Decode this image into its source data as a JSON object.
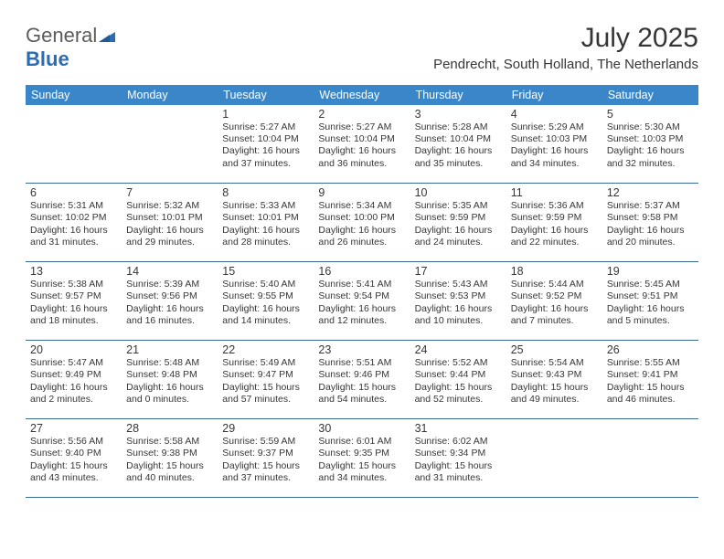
{
  "brand": {
    "part1": "General",
    "part2": "Blue"
  },
  "title": "July 2025",
  "location": "Pendrecht, South Holland, The Netherlands",
  "styling": {
    "header_bg": "#3a86c8",
    "header_text": "#ffffff",
    "border_color": "#3a6a97",
    "text_color": "#363636",
    "logo_gray": "#5c5c5c",
    "logo_blue": "#2a6db4",
    "page_bg": "#ffffff",
    "title_fontsize": 30,
    "location_fontsize": 15,
    "dayhead_fontsize": 12.5,
    "cell_fontsize": 10.5
  },
  "dayHeaders": [
    "Sunday",
    "Monday",
    "Tuesday",
    "Wednesday",
    "Thursday",
    "Friday",
    "Saturday"
  ],
  "weeks": [
    [
      null,
      null,
      {
        "n": "1",
        "sr": "Sunrise: 5:27 AM",
        "ss": "Sunset: 10:04 PM",
        "dl": "Daylight: 16 hours and 37 minutes."
      },
      {
        "n": "2",
        "sr": "Sunrise: 5:27 AM",
        "ss": "Sunset: 10:04 PM",
        "dl": "Daylight: 16 hours and 36 minutes."
      },
      {
        "n": "3",
        "sr": "Sunrise: 5:28 AM",
        "ss": "Sunset: 10:04 PM",
        "dl": "Daylight: 16 hours and 35 minutes."
      },
      {
        "n": "4",
        "sr": "Sunrise: 5:29 AM",
        "ss": "Sunset: 10:03 PM",
        "dl": "Daylight: 16 hours and 34 minutes."
      },
      {
        "n": "5",
        "sr": "Sunrise: 5:30 AM",
        "ss": "Sunset: 10:03 PM",
        "dl": "Daylight: 16 hours and 32 minutes."
      }
    ],
    [
      {
        "n": "6",
        "sr": "Sunrise: 5:31 AM",
        "ss": "Sunset: 10:02 PM",
        "dl": "Daylight: 16 hours and 31 minutes."
      },
      {
        "n": "7",
        "sr": "Sunrise: 5:32 AM",
        "ss": "Sunset: 10:01 PM",
        "dl": "Daylight: 16 hours and 29 minutes."
      },
      {
        "n": "8",
        "sr": "Sunrise: 5:33 AM",
        "ss": "Sunset: 10:01 PM",
        "dl": "Daylight: 16 hours and 28 minutes."
      },
      {
        "n": "9",
        "sr": "Sunrise: 5:34 AM",
        "ss": "Sunset: 10:00 PM",
        "dl": "Daylight: 16 hours and 26 minutes."
      },
      {
        "n": "10",
        "sr": "Sunrise: 5:35 AM",
        "ss": "Sunset: 9:59 PM",
        "dl": "Daylight: 16 hours and 24 minutes."
      },
      {
        "n": "11",
        "sr": "Sunrise: 5:36 AM",
        "ss": "Sunset: 9:59 PM",
        "dl": "Daylight: 16 hours and 22 minutes."
      },
      {
        "n": "12",
        "sr": "Sunrise: 5:37 AM",
        "ss": "Sunset: 9:58 PM",
        "dl": "Daylight: 16 hours and 20 minutes."
      }
    ],
    [
      {
        "n": "13",
        "sr": "Sunrise: 5:38 AM",
        "ss": "Sunset: 9:57 PM",
        "dl": "Daylight: 16 hours and 18 minutes."
      },
      {
        "n": "14",
        "sr": "Sunrise: 5:39 AM",
        "ss": "Sunset: 9:56 PM",
        "dl": "Daylight: 16 hours and 16 minutes."
      },
      {
        "n": "15",
        "sr": "Sunrise: 5:40 AM",
        "ss": "Sunset: 9:55 PM",
        "dl": "Daylight: 16 hours and 14 minutes."
      },
      {
        "n": "16",
        "sr": "Sunrise: 5:41 AM",
        "ss": "Sunset: 9:54 PM",
        "dl": "Daylight: 16 hours and 12 minutes."
      },
      {
        "n": "17",
        "sr": "Sunrise: 5:43 AM",
        "ss": "Sunset: 9:53 PM",
        "dl": "Daylight: 16 hours and 10 minutes."
      },
      {
        "n": "18",
        "sr": "Sunrise: 5:44 AM",
        "ss": "Sunset: 9:52 PM",
        "dl": "Daylight: 16 hours and 7 minutes."
      },
      {
        "n": "19",
        "sr": "Sunrise: 5:45 AM",
        "ss": "Sunset: 9:51 PM",
        "dl": "Daylight: 16 hours and 5 minutes."
      }
    ],
    [
      {
        "n": "20",
        "sr": "Sunrise: 5:47 AM",
        "ss": "Sunset: 9:49 PM",
        "dl": "Daylight: 16 hours and 2 minutes."
      },
      {
        "n": "21",
        "sr": "Sunrise: 5:48 AM",
        "ss": "Sunset: 9:48 PM",
        "dl": "Daylight: 16 hours and 0 minutes."
      },
      {
        "n": "22",
        "sr": "Sunrise: 5:49 AM",
        "ss": "Sunset: 9:47 PM",
        "dl": "Daylight: 15 hours and 57 minutes."
      },
      {
        "n": "23",
        "sr": "Sunrise: 5:51 AM",
        "ss": "Sunset: 9:46 PM",
        "dl": "Daylight: 15 hours and 54 minutes."
      },
      {
        "n": "24",
        "sr": "Sunrise: 5:52 AM",
        "ss": "Sunset: 9:44 PM",
        "dl": "Daylight: 15 hours and 52 minutes."
      },
      {
        "n": "25",
        "sr": "Sunrise: 5:54 AM",
        "ss": "Sunset: 9:43 PM",
        "dl": "Daylight: 15 hours and 49 minutes."
      },
      {
        "n": "26",
        "sr": "Sunrise: 5:55 AM",
        "ss": "Sunset: 9:41 PM",
        "dl": "Daylight: 15 hours and 46 minutes."
      }
    ],
    [
      {
        "n": "27",
        "sr": "Sunrise: 5:56 AM",
        "ss": "Sunset: 9:40 PM",
        "dl": "Daylight: 15 hours and 43 minutes."
      },
      {
        "n": "28",
        "sr": "Sunrise: 5:58 AM",
        "ss": "Sunset: 9:38 PM",
        "dl": "Daylight: 15 hours and 40 minutes."
      },
      {
        "n": "29",
        "sr": "Sunrise: 5:59 AM",
        "ss": "Sunset: 9:37 PM",
        "dl": "Daylight: 15 hours and 37 minutes."
      },
      {
        "n": "30",
        "sr": "Sunrise: 6:01 AM",
        "ss": "Sunset: 9:35 PM",
        "dl": "Daylight: 15 hours and 34 minutes."
      },
      {
        "n": "31",
        "sr": "Sunrise: 6:02 AM",
        "ss": "Sunset: 9:34 PM",
        "dl": "Daylight: 15 hours and 31 minutes."
      },
      null,
      null
    ]
  ]
}
